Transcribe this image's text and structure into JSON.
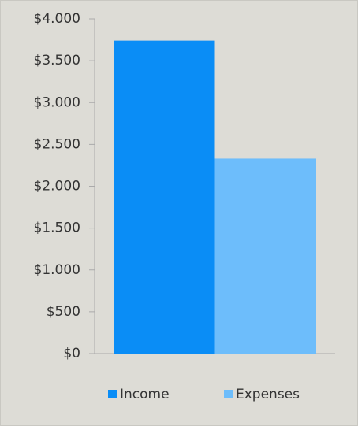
{
  "chart_data": {
    "type": "bar",
    "categories": [
      null
    ],
    "series": [
      {
        "name": "Income",
        "color": "#0a8df6",
        "values": [
          3740
        ]
      },
      {
        "name": "Expenses",
        "color": "#6dbdfb",
        "values": [
          2330
        ]
      }
    ],
    "ylim": [
      0,
      4000
    ],
    "yticks": [
      {
        "value": 0,
        "label": "$0"
      },
      {
        "value": 500,
        "label": "$500"
      },
      {
        "value": 1000,
        "label": "$1.000"
      },
      {
        "value": 1500,
        "label": "$1.500"
      },
      {
        "value": 2000,
        "label": "$2.000"
      },
      {
        "value": 2500,
        "label": "$2.500"
      },
      {
        "value": 3000,
        "label": "$3.000"
      },
      {
        "value": 3500,
        "label": "$3.500"
      },
      {
        "value": 4000,
        "label": "$4.000"
      }
    ],
    "grid": false,
    "legend": "bottom"
  }
}
